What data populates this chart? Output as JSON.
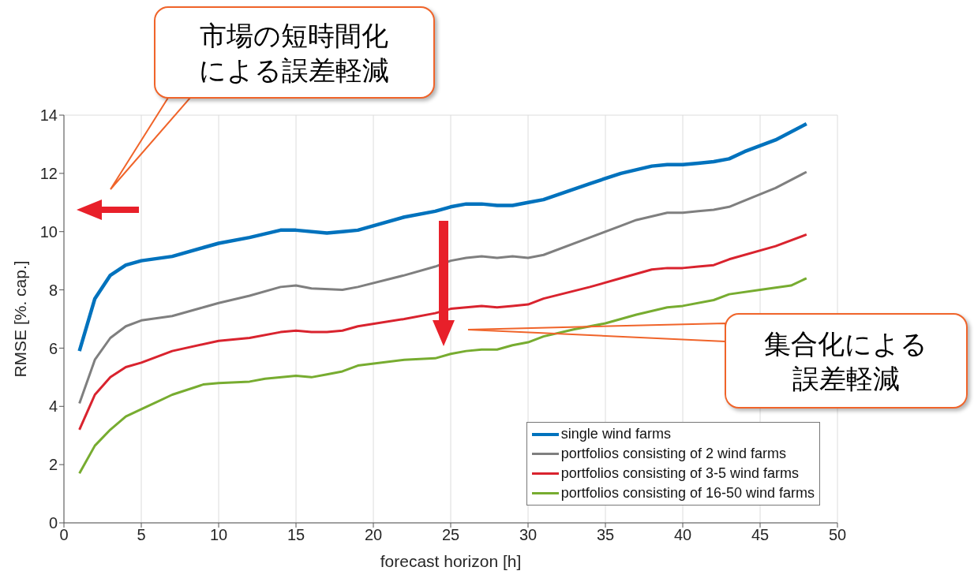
{
  "chart_data": {
    "type": "line",
    "xlabel": "forecast horizon [h]",
    "ylabel": "RMSE [%. cap.]",
    "xlim": [
      0,
      50
    ],
    "xticks": [
      0,
      5,
      10,
      15,
      20,
      25,
      30,
      35,
      40,
      45,
      50
    ],
    "ylim": [
      0,
      14
    ],
    "yticks": [
      0,
      2,
      4,
      6,
      8,
      10,
      12,
      14
    ],
    "grid": true,
    "legend": "bottom right",
    "line_style": "solid",
    "annotations": [
      "市場の短時間化による誤差軽減",
      "集合化による誤差軽減"
    ],
    "series": [
      {
        "name": "single wind farms",
        "color": "#0072bd",
        "x": [
          1,
          2,
          3,
          4,
          5,
          7,
          9,
          10,
          12,
          14,
          15,
          17,
          18,
          19,
          22,
          24,
          25,
          26,
          27,
          28,
          29,
          30,
          31,
          34,
          36,
          38,
          39,
          40,
          41,
          42,
          43,
          44,
          46,
          48
        ],
        "values": [
          5.9,
          7.7,
          8.5,
          8.85,
          9.0,
          9.15,
          9.45,
          9.6,
          9.8,
          10.05,
          10.05,
          9.95,
          10.0,
          10.05,
          10.5,
          10.7,
          10.85,
          10.95,
          10.95,
          10.9,
          10.9,
          11.0,
          11.1,
          11.65,
          12.0,
          12.25,
          12.3,
          12.3,
          12.35,
          12.4,
          12.5,
          12.75,
          13.15,
          13.7
        ]
      },
      {
        "name": "portfolios consisting of 2 wind farms",
        "color": "#7f7f7f",
        "x": [
          1,
          2,
          3,
          4,
          5,
          7,
          9,
          10,
          12,
          14,
          15,
          16,
          18,
          19,
          22,
          24,
          25,
          26,
          27,
          28,
          29,
          30,
          31,
          34,
          36,
          37,
          39,
          40,
          41,
          42,
          43,
          46,
          48
        ],
        "values": [
          4.1,
          5.6,
          6.35,
          6.75,
          6.95,
          7.1,
          7.4,
          7.55,
          7.8,
          8.1,
          8.15,
          8.05,
          8.0,
          8.1,
          8.5,
          8.8,
          9.0,
          9.1,
          9.15,
          9.1,
          9.15,
          9.1,
          9.2,
          9.8,
          10.2,
          10.4,
          10.65,
          10.65,
          10.7,
          10.75,
          10.85,
          11.5,
          12.05
        ]
      },
      {
        "name": "portfolios consisting of 3-5 wind farms",
        "color": "#d9232e",
        "x": [
          1,
          2,
          3,
          4,
          5,
          7,
          10,
          12,
          14,
          15,
          16,
          17,
          18,
          19,
          22,
          24,
          25,
          26,
          27,
          28,
          29,
          30,
          31,
          34,
          36,
          37,
          38,
          39,
          40,
          41,
          42,
          43,
          46,
          48
        ],
        "values": [
          3.2,
          4.4,
          5.0,
          5.35,
          5.5,
          5.9,
          6.25,
          6.35,
          6.55,
          6.6,
          6.55,
          6.55,
          6.6,
          6.75,
          7.0,
          7.2,
          7.35,
          7.4,
          7.45,
          7.4,
          7.45,
          7.5,
          7.7,
          8.1,
          8.4,
          8.55,
          8.7,
          8.75,
          8.75,
          8.8,
          8.85,
          9.05,
          9.5,
          9.9
        ]
      },
      {
        "name": "portfolios consisting of 16-50 wind farms",
        "color": "#77ac30",
        "x": [
          1,
          2,
          3,
          4,
          5,
          7,
          9,
          10,
          12,
          13,
          15,
          16,
          17,
          18,
          19,
          22,
          24,
          25,
          26,
          27,
          28,
          29,
          30,
          31,
          33,
          35,
          37,
          39,
          40,
          42,
          43,
          45,
          47,
          48
        ],
        "values": [
          1.7,
          2.65,
          3.2,
          3.65,
          3.9,
          4.4,
          4.75,
          4.8,
          4.85,
          4.95,
          5.05,
          5.0,
          5.1,
          5.2,
          5.4,
          5.6,
          5.65,
          5.8,
          5.9,
          5.95,
          5.95,
          6.1,
          6.2,
          6.4,
          6.65,
          6.85,
          7.15,
          7.4,
          7.45,
          7.65,
          7.85,
          8.0,
          8.15,
          8.4
        ]
      }
    ]
  }
}
